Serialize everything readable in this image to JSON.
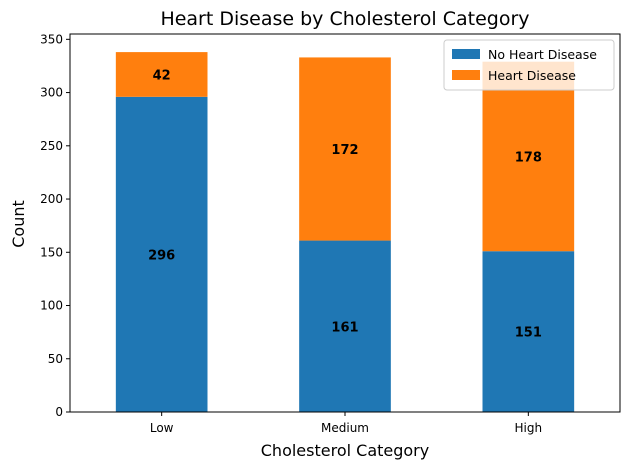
{
  "chart_data": {
    "type": "bar",
    "stacked": true,
    "title": "Heart Disease by Cholesterol Category",
    "xlabel": "Cholesterol Category",
    "ylabel": "Count",
    "categories": [
      "Low",
      "Medium",
      "High"
    ],
    "series": [
      {
        "name": "No Heart Disease",
        "values": [
          296,
          161,
          151
        ],
        "color": "#1f77b4"
      },
      {
        "name": "Heart Disease",
        "values": [
          42,
          172,
          178
        ],
        "color": "#ff7f0e"
      }
    ],
    "ylim": [
      0,
      355
    ],
    "yticks": [
      0,
      50,
      100,
      150,
      200,
      250,
      300,
      350
    ],
    "grid": false,
    "legend_position": "top-right",
    "data_labels": true
  }
}
